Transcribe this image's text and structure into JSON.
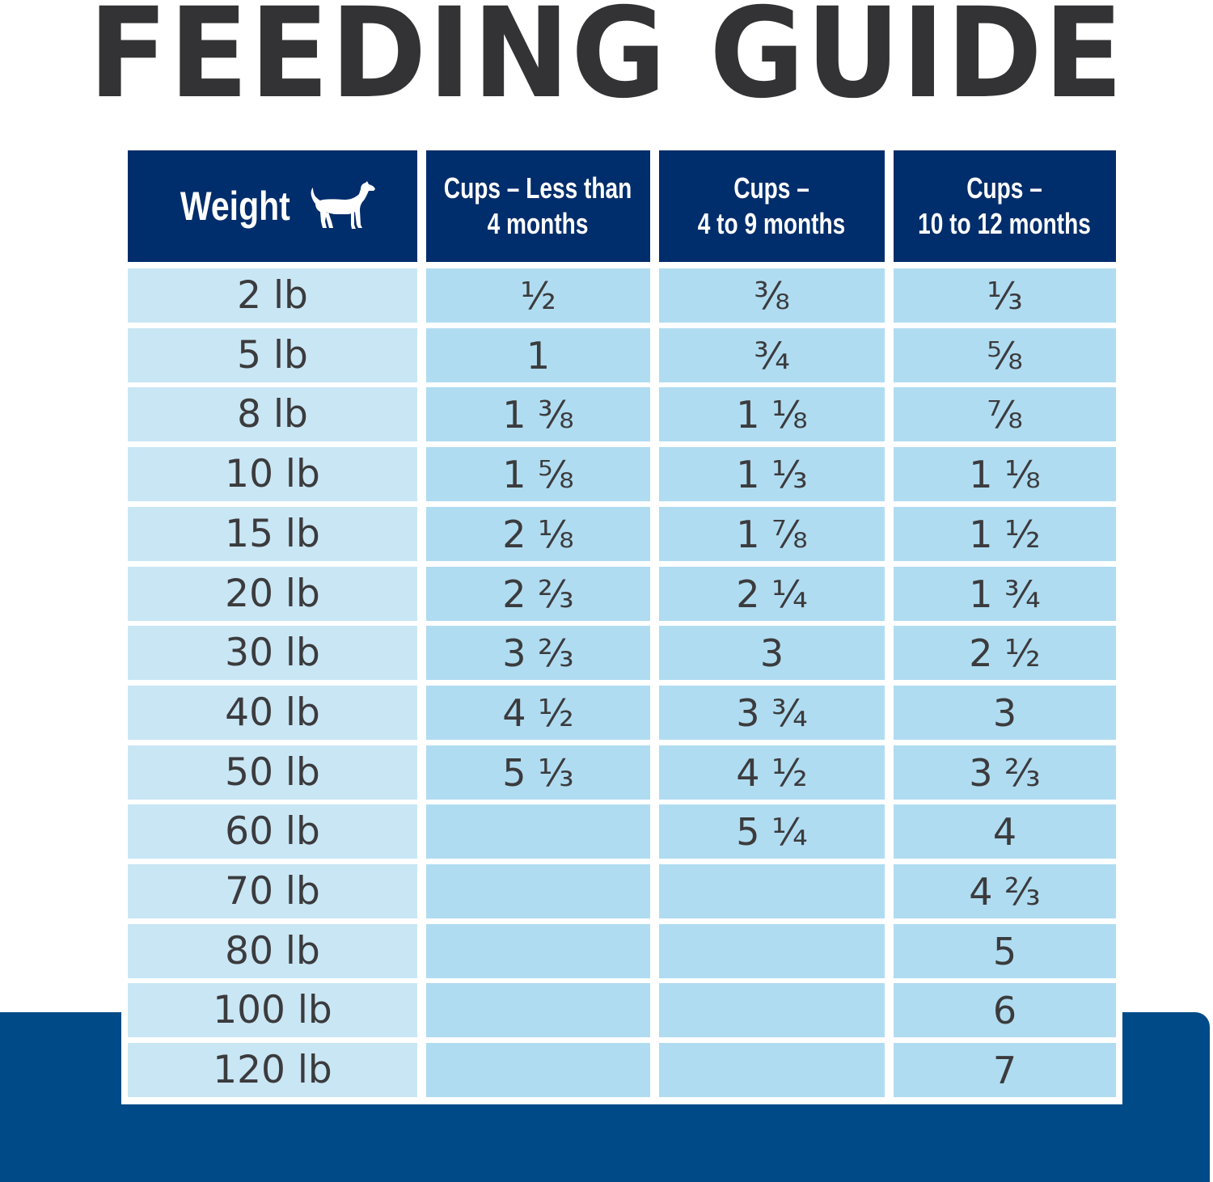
{
  "title": "FEEDING GUIDE",
  "icons": {
    "header_weight_icon": "dog-icon"
  },
  "colors": {
    "title_text": "#333335",
    "header_bg": "#002d6b",
    "weight_col_bg": "#c9e6f5",
    "data_col_bg": "#b0dcf1",
    "bottom_band": "#004a87"
  },
  "table": {
    "headers": {
      "weight": "Weight",
      "col1_line1": "Cups – Less than",
      "col1_line2": "4 months",
      "col2_line1": "Cups –",
      "col2_line2": "4 to 9 months",
      "col3_line1": "Cups –",
      "col3_line2": "10 to 12 months"
    },
    "rows": [
      {
        "weight": "2 lb",
        "c1": "½",
        "c2": "⅜",
        "c3": "⅓"
      },
      {
        "weight": "5 lb",
        "c1": "1",
        "c2": "¾",
        "c3": "⅝"
      },
      {
        "weight": "8 lb",
        "c1": "1 ⅜",
        "c2": "1 ⅛",
        "c3": "⅞"
      },
      {
        "weight": "10 lb",
        "c1": "1 ⅝",
        "c2": "1 ⅓",
        "c3": "1 ⅛"
      },
      {
        "weight": "15 lb",
        "c1": "2 ⅛",
        "c2": "1 ⅞",
        "c3": "1 ½"
      },
      {
        "weight": "20 lb",
        "c1": "2 ⅔",
        "c2": "2 ¼",
        "c3": "1 ¾"
      },
      {
        "weight": "30 lb",
        "c1": "3 ⅔",
        "c2": "3",
        "c3": "2 ½"
      },
      {
        "weight": "40 lb",
        "c1": "4 ½",
        "c2": "3 ¾",
        "c3": "3"
      },
      {
        "weight": "50 lb",
        "c1": "5 ⅓",
        "c2": "4 ½",
        "c3": "3 ⅔"
      },
      {
        "weight": "60 lb",
        "c1": "",
        "c2": "5 ¼",
        "c3": "4"
      },
      {
        "weight": "70 lb",
        "c1": "",
        "c2": "",
        "c3": "4 ⅔"
      },
      {
        "weight": "80 lb",
        "c1": "",
        "c2": "",
        "c3": "5"
      },
      {
        "weight": "100 lb",
        "c1": "",
        "c2": "",
        "c3": "6"
      },
      {
        "weight": "120 lb",
        "c1": "",
        "c2": "",
        "c3": "7"
      }
    ]
  }
}
